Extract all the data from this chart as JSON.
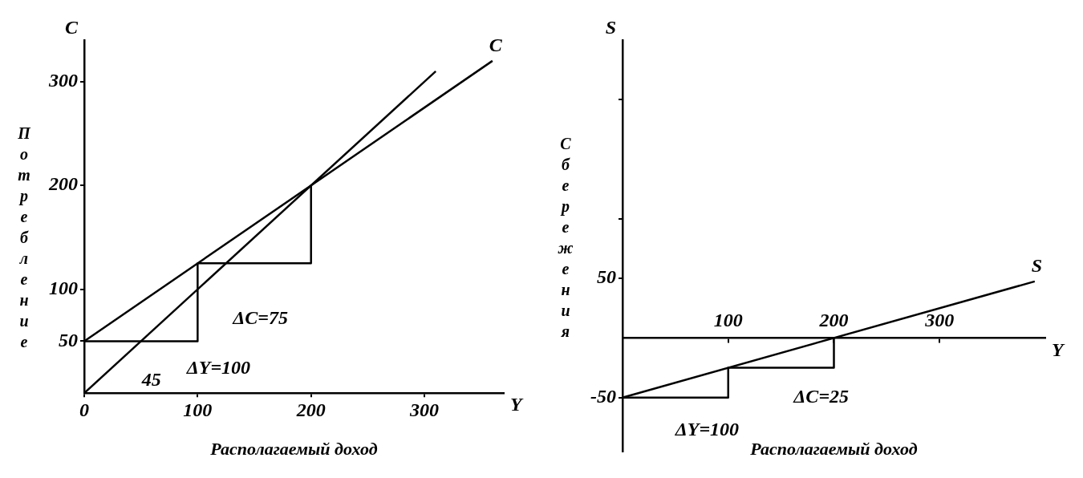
{
  "chart_data": [
    {
      "type": "line",
      "ylabel": "Потребление",
      "xlabel": "Располагаемый доход",
      "xlim": [
        0,
        370
      ],
      "ylim": [
        0,
        340
      ],
      "xticks": [
        0,
        100,
        200,
        300
      ],
      "yticks": [
        50,
        100,
        200,
        300
      ],
      "grid": false,
      "legend": false,
      "marker": "none",
      "line_style": "solid",
      "series": [
        {
          "name": "C",
          "color": "#000000",
          "x": [
            0,
            360
          ],
          "values": [
            50,
            320
          ]
        },
        {
          "color": "#000000",
          "x": [
            0,
            310
          ],
          "values": [
            0,
            310
          ]
        },
        {
          "color": "#000000",
          "x": [
            0,
            100,
            100,
            200,
            200
          ],
          "values": [
            50,
            50,
            125,
            125,
            200
          ]
        }
      ],
      "annotations": [
        "C",
        "Y",
        "ΔC=75",
        "ΔY=100",
        "45"
      ]
    },
    {
      "type": "line",
      "ylabel": "Сбережения",
      "xlabel": "Располагаемый доход",
      "xlim": [
        0,
        400
      ],
      "ylim": [
        -95,
        250
      ],
      "xticks": [
        100,
        200,
        300
      ],
      "yticks": [
        -50,
        50,
        {
          "value": 100,
          "label": null
        },
        {
          "value": 200,
          "label": null
        }
      ],
      "grid": false,
      "legend": false,
      "marker": "none",
      "line_style": "solid",
      "series": [
        {
          "name": "S",
          "color": "#000000",
          "x": [
            0,
            390
          ],
          "values": [
            -50,
            47.5
          ]
        },
        {
          "color": "#000000",
          "x": [
            0,
            100,
            100,
            200,
            200
          ],
          "values": [
            -50,
            -50,
            -25,
            -25,
            0
          ]
        }
      ],
      "annotations": [
        "S",
        "Y",
        "ΔC=25",
        "ΔY=100"
      ]
    }
  ]
}
